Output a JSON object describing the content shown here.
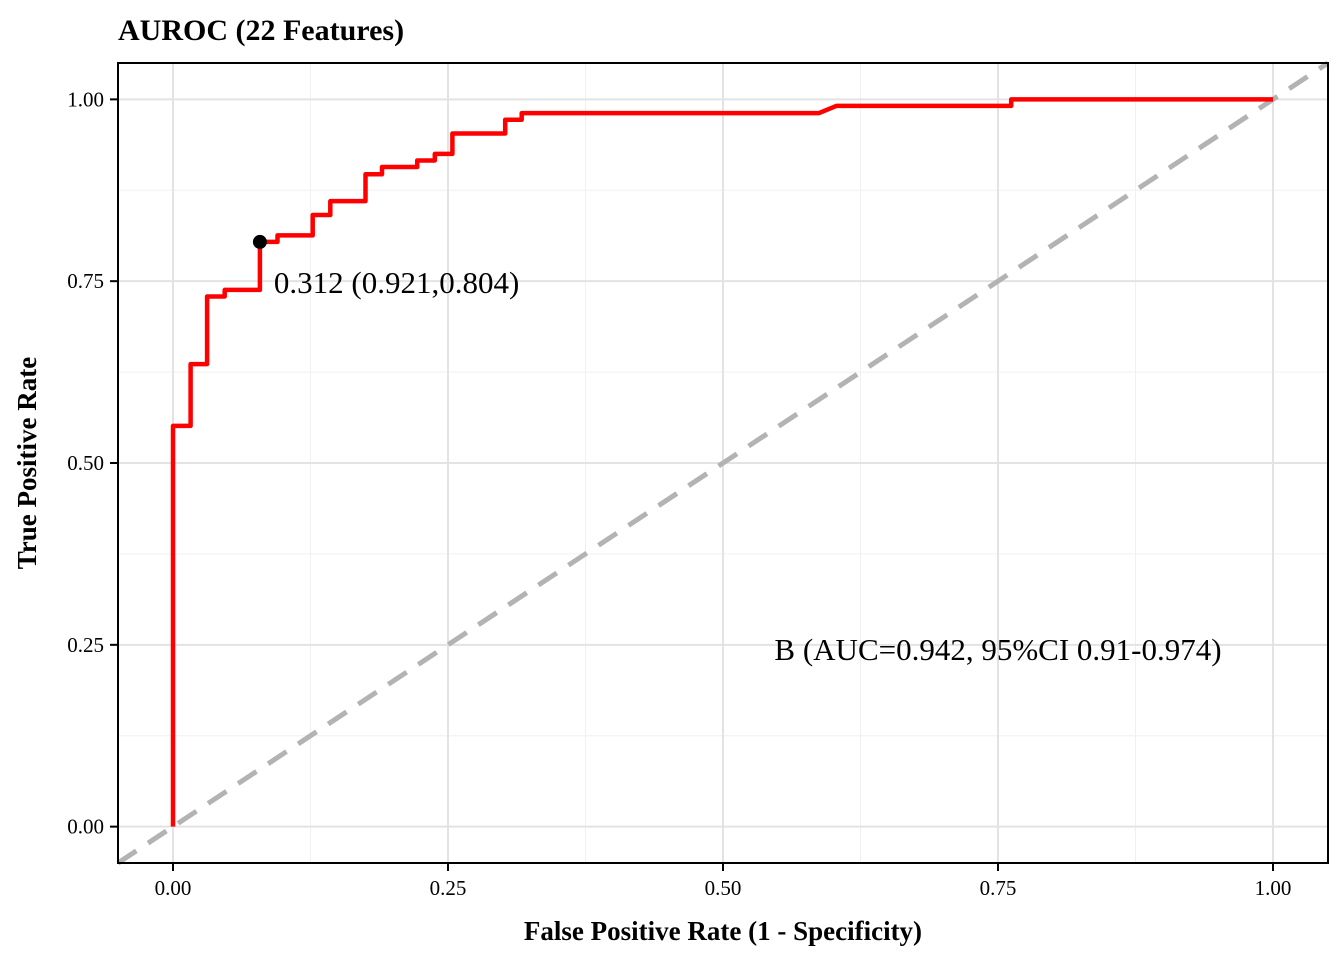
{
  "chart_data": {
    "type": "line",
    "title": "AUROC (22 Features)",
    "xlabel": "False Positive Rate (1 - Specificity)",
    "ylabel": "True Positive Rate",
    "xlim": [
      -0.05,
      1.05
    ],
    "ylim": [
      -0.05,
      1.05
    ],
    "x_ticks": [
      0,
      0.25,
      0.5,
      0.75,
      1
    ],
    "x_tick_labels": [
      "0.00",
      "0.25",
      "0.50",
      "0.75",
      "1.00"
    ],
    "y_ticks": [
      0,
      0.25,
      0.5,
      0.75,
      1
    ],
    "y_tick_labels": [
      "0.00",
      "0.25",
      "0.50",
      "0.75",
      "1.00"
    ],
    "grid": true,
    "series": [
      {
        "name": "",
        "color": "#ff0000",
        "x": [
          0,
          0,
          0.016,
          0.016,
          0.031,
          0.031,
          0.047,
          0.047,
          0.079,
          0.079,
          0.095,
          0.095,
          0.127,
          0.127,
          0.143,
          0.143,
          0.175,
          0.175,
          0.19,
          0.19,
          0.222,
          0.222,
          0.238,
          0.238,
          0.254,
          0.254,
          0.302,
          0.302,
          0.317,
          0.317,
          0.587,
          0.603,
          0.762,
          0.762,
          1
        ],
        "y": [
          0,
          0.551,
          0.551,
          0.636,
          0.636,
          0.729,
          0.729,
          0.738,
          0.738,
          0.804,
          0.804,
          0.813,
          0.813,
          0.841,
          0.841,
          0.86,
          0.86,
          0.897,
          0.897,
          0.907,
          0.907,
          0.916,
          0.916,
          0.925,
          0.925,
          0.953,
          0.953,
          0.972,
          0.972,
          0.981,
          0.981,
          0.991,
          0.991,
          1,
          1
        ]
      },
      {
        "name": "",
        "color": "#b3b3b3",
        "dashed": true,
        "x": [
          -0.05,
          1.05
        ],
        "y": [
          -0.05,
          1.05
        ]
      }
    ],
    "optimal_point": {
      "x": 0.079,
      "y": 0.804,
      "label": "0.312 (0.921,0.804)"
    },
    "auc_label": "B (AUC=0.942, 95%CI 0.91-0.974)"
  }
}
